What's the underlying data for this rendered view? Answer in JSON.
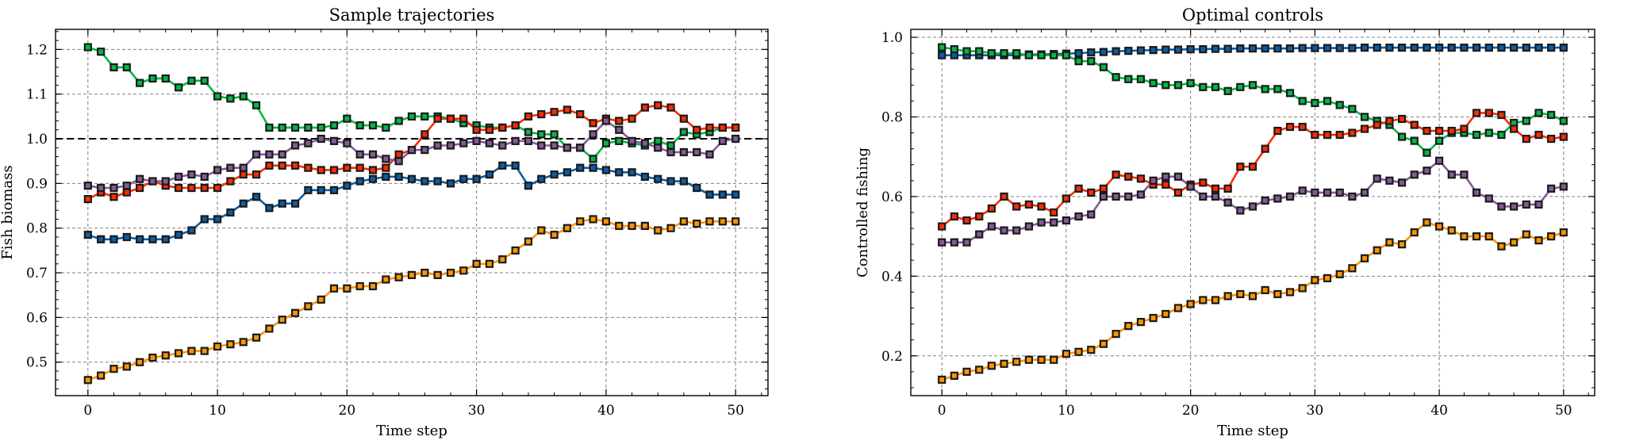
{
  "charts": [
    {
      "type": "line",
      "title": "Sample trajectories",
      "xlabel": "Time step",
      "ylabel": "Fish biomass",
      "xlim": [
        -2.5,
        52.5
      ],
      "ylim": [
        0.425,
        1.245
      ],
      "xticks": [
        0,
        10,
        20,
        30,
        40,
        50
      ],
      "yticks": [
        0.5,
        0.6,
        0.7,
        0.8,
        0.9,
        1.0,
        1.1,
        1.2
      ],
      "ytick_labels": [
        "0.5",
        "0.6",
        "0.7",
        "0.8",
        "0.9",
        "1.0",
        "1.1",
        "1.2"
      ],
      "xtick_labels": [
        "0",
        "10",
        "20",
        "30",
        "40",
        "50"
      ],
      "grid": true,
      "reference_line": 1.0,
      "series": [
        {
          "color": "#00B945",
          "values": [
            1.205,
            1.195,
            1.16,
            1.16,
            1.125,
            1.135,
            1.135,
            1.115,
            1.13,
            1.13,
            1.095,
            1.09,
            1.095,
            1.075,
            1.025,
            1.025,
            1.025,
            1.025,
            1.025,
            1.03,
            1.045,
            1.03,
            1.03,
            1.025,
            1.04,
            1.05,
            1.05,
            1.05,
            1.045,
            1.035,
            1.03,
            1.025,
            1.025,
            1.03,
            1.015,
            1.01,
            1.01,
            0.98,
            0.98,
            0.955,
            0.99,
            0.995,
            0.99,
            0.985,
            0.995,
            0.985,
            1.015,
            1.01,
            1.015,
            1.025,
            1.025
          ]
        },
        {
          "color": "#FF2C00",
          "values": [
            0.865,
            0.88,
            0.87,
            0.88,
            0.89,
            0.905,
            0.895,
            0.89,
            0.89,
            0.89,
            0.89,
            0.905,
            0.92,
            0.92,
            0.94,
            0.94,
            0.94,
            0.935,
            0.93,
            0.93,
            0.935,
            0.935,
            0.93,
            0.935,
            0.965,
            0.975,
            1.01,
            1.045,
            1.045,
            1.045,
            1.02,
            1.02,
            1.025,
            1.03,
            1.05,
            1.055,
            1.06,
            1.065,
            1.055,
            1.035,
            1.045,
            1.04,
            1.045,
            1.07,
            1.075,
            1.07,
            1.045,
            1.02,
            1.025,
            1.025,
            1.025
          ]
        },
        {
          "color": "#845B97",
          "values": [
            0.895,
            0.89,
            0.89,
            0.895,
            0.91,
            0.905,
            0.905,
            0.915,
            0.92,
            0.915,
            0.93,
            0.935,
            0.935,
            0.965,
            0.965,
            0.965,
            0.985,
            0.99,
            1.0,
            0.995,
            0.99,
            0.965,
            0.965,
            0.955,
            0.95,
            0.975,
            0.975,
            0.985,
            0.985,
            0.99,
            0.995,
            0.99,
            0.985,
            0.995,
            0.995,
            0.985,
            0.985,
            0.98,
            0.98,
            1.01,
            1.04,
            1.02,
            0.995,
            0.99,
            0.98,
            0.97,
            0.97,
            0.97,
            0.965,
            0.995,
            1.0
          ]
        },
        {
          "color": "#0C5DA5",
          "values": [
            0.785,
            0.775,
            0.775,
            0.78,
            0.775,
            0.775,
            0.775,
            0.785,
            0.795,
            0.82,
            0.82,
            0.835,
            0.855,
            0.87,
            0.845,
            0.855,
            0.855,
            0.885,
            0.885,
            0.885,
            0.895,
            0.905,
            0.91,
            0.915,
            0.915,
            0.91,
            0.905,
            0.905,
            0.9,
            0.91,
            0.91,
            0.92,
            0.94,
            0.94,
            0.895,
            0.91,
            0.92,
            0.925,
            0.935,
            0.935,
            0.93,
            0.925,
            0.925,
            0.915,
            0.91,
            0.905,
            0.905,
            0.89,
            0.875,
            0.875,
            0.875
          ]
        },
        {
          "color": "#FF9500",
          "values": [
            0.46,
            0.47,
            0.485,
            0.49,
            0.5,
            0.51,
            0.515,
            0.52,
            0.525,
            0.525,
            0.535,
            0.54,
            0.545,
            0.555,
            0.575,
            0.595,
            0.61,
            0.625,
            0.64,
            0.665,
            0.665,
            0.67,
            0.67,
            0.685,
            0.69,
            0.695,
            0.7,
            0.695,
            0.7,
            0.705,
            0.72,
            0.72,
            0.73,
            0.75,
            0.77,
            0.795,
            0.785,
            0.8,
            0.815,
            0.82,
            0.815,
            0.805,
            0.805,
            0.805,
            0.795,
            0.8,
            0.815,
            0.81,
            0.815,
            0.815,
            0.815
          ]
        }
      ]
    },
    {
      "type": "line",
      "title": "Optimal controls",
      "xlabel": "Time step",
      "ylabel": "Controlled fishing",
      "xlim": [
        -2.5,
        52.5
      ],
      "ylim": [
        0.1,
        1.02
      ],
      "xticks": [
        0,
        10,
        20,
        30,
        40,
        50
      ],
      "yticks": [
        0.2,
        0.4,
        0.6,
        0.8,
        1.0
      ],
      "ytick_labels": [
        "0.2",
        "0.4",
        "0.6",
        "0.8",
        "1.0"
      ],
      "xtick_labels": [
        "0",
        "10",
        "20",
        "30",
        "40",
        "50"
      ],
      "grid": true,
      "series": [
        {
          "color": "#0C5DA5",
          "values": [
            0.955,
            0.955,
            0.955,
            0.955,
            0.955,
            0.955,
            0.955,
            0.957,
            0.957,
            0.958,
            0.959,
            0.96,
            0.962,
            0.963,
            0.965,
            0.966,
            0.967,
            0.968,
            0.969,
            0.969,
            0.97,
            0.97,
            0.971,
            0.971,
            0.972,
            0.972,
            0.972,
            0.972,
            0.972,
            0.973,
            0.973,
            0.973,
            0.973,
            0.973,
            0.974,
            0.974,
            0.974,
            0.974,
            0.974,
            0.974,
            0.974,
            0.974,
            0.974,
            0.974,
            0.974,
            0.974,
            0.974,
            0.974,
            0.974,
            0.974,
            0.974
          ]
        },
        {
          "color": "#00B945",
          "values": [
            0.975,
            0.97,
            0.965,
            0.965,
            0.96,
            0.96,
            0.96,
            0.955,
            0.955,
            0.955,
            0.955,
            0.94,
            0.94,
            0.925,
            0.9,
            0.895,
            0.895,
            0.885,
            0.88,
            0.88,
            0.885,
            0.875,
            0.875,
            0.865,
            0.875,
            0.88,
            0.87,
            0.87,
            0.86,
            0.84,
            0.835,
            0.84,
            0.83,
            0.82,
            0.8,
            0.79,
            0.78,
            0.75,
            0.74,
            0.71,
            0.74,
            0.76,
            0.76,
            0.755,
            0.76,
            0.755,
            0.785,
            0.79,
            0.81,
            0.805,
            0.79
          ]
        },
        {
          "color": "#FF2C00",
          "values": [
            0.525,
            0.55,
            0.54,
            0.55,
            0.57,
            0.6,
            0.575,
            0.58,
            0.575,
            0.56,
            0.595,
            0.62,
            0.61,
            0.62,
            0.655,
            0.65,
            0.645,
            0.63,
            0.63,
            0.61,
            0.63,
            0.635,
            0.62,
            0.62,
            0.675,
            0.675,
            0.72,
            0.765,
            0.775,
            0.775,
            0.755,
            0.755,
            0.755,
            0.76,
            0.77,
            0.78,
            0.79,
            0.795,
            0.78,
            0.765,
            0.765,
            0.765,
            0.77,
            0.81,
            0.81,
            0.805,
            0.77,
            0.745,
            0.755,
            0.745,
            0.75
          ]
        },
        {
          "color": "#845B97",
          "values": [
            0.485,
            0.485,
            0.485,
            0.505,
            0.525,
            0.515,
            0.515,
            0.525,
            0.535,
            0.535,
            0.54,
            0.55,
            0.555,
            0.6,
            0.6,
            0.6,
            0.605,
            0.64,
            0.65,
            0.65,
            0.625,
            0.6,
            0.6,
            0.585,
            0.565,
            0.575,
            0.59,
            0.595,
            0.6,
            0.615,
            0.61,
            0.61,
            0.61,
            0.6,
            0.61,
            0.645,
            0.64,
            0.635,
            0.655,
            0.665,
            0.69,
            0.655,
            0.655,
            0.61,
            0.595,
            0.575,
            0.575,
            0.58,
            0.58,
            0.62,
            0.625
          ]
        },
        {
          "color": "#FF9500",
          "values": [
            0.14,
            0.15,
            0.16,
            0.165,
            0.175,
            0.18,
            0.185,
            0.19,
            0.19,
            0.19,
            0.205,
            0.21,
            0.215,
            0.23,
            0.255,
            0.275,
            0.285,
            0.295,
            0.305,
            0.32,
            0.33,
            0.34,
            0.34,
            0.35,
            0.355,
            0.35,
            0.365,
            0.355,
            0.36,
            0.37,
            0.39,
            0.395,
            0.405,
            0.42,
            0.445,
            0.465,
            0.485,
            0.48,
            0.51,
            0.535,
            0.525,
            0.515,
            0.5,
            0.5,
            0.5,
            0.475,
            0.485,
            0.505,
            0.49,
            0.5,
            0.51
          ]
        }
      ]
    }
  ]
}
